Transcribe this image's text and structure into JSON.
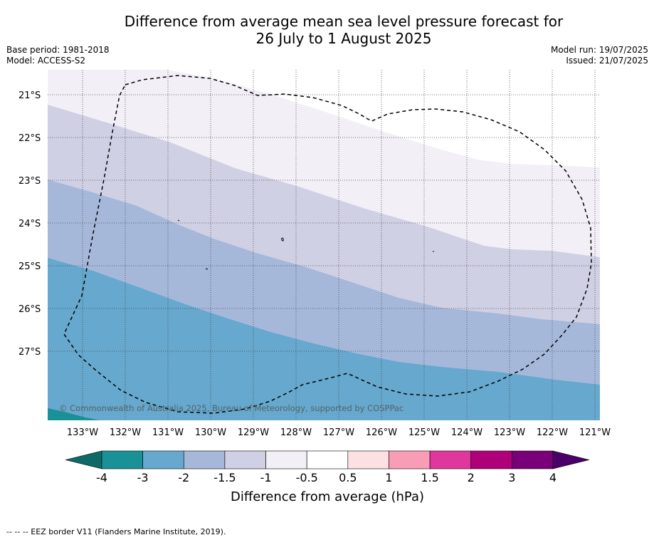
{
  "title_line1": "Difference from average mean sea level pressure forecast for",
  "title_line2": "26 July to 1 August 2025",
  "info": {
    "base_period": "Base period: 1981-2018",
    "model": "Model: ACCESS-S2",
    "model_run": "Model run: 19/07/2025",
    "issued": "Issued: 21/07/2025"
  },
  "map": {
    "lon_labels": [
      "133°W",
      "132°W",
      "131°W",
      "130°W",
      "129°W",
      "128°W",
      "127°W",
      "126°W",
      "125°W",
      "124°W",
      "123°W",
      "122°W",
      "121°W"
    ],
    "lat_labels": [
      "21°S",
      "22°S",
      "23°S",
      "24°S",
      "25°S",
      "26°S",
      "27°S"
    ],
    "copyright": "© Commonwealth of Australia 2025, Bureau of Meteorology, supported by COSPPac"
  },
  "legend": {
    "ticks": [
      "-4",
      "-3",
      "-2",
      "-1.5",
      "-1",
      "-0.5",
      "0.5",
      "1",
      "1.5",
      "2",
      "3",
      "4"
    ],
    "colors": [
      "#1a9197",
      "#66a8ce",
      "#a6b8da",
      "#d0d0e4",
      "#f2eff7",
      "#ffffff",
      "#fde0e1",
      "#f99db7",
      "#e0379c",
      "#ae0078",
      "#7a0079"
    ],
    "under_color": "#0d6a66",
    "over_color": "#4a0068",
    "label": "Difference from average (hPa)"
  },
  "footer": "-- -- -- EEZ border V11 (Flanders Marine Institute, 2019)."
}
